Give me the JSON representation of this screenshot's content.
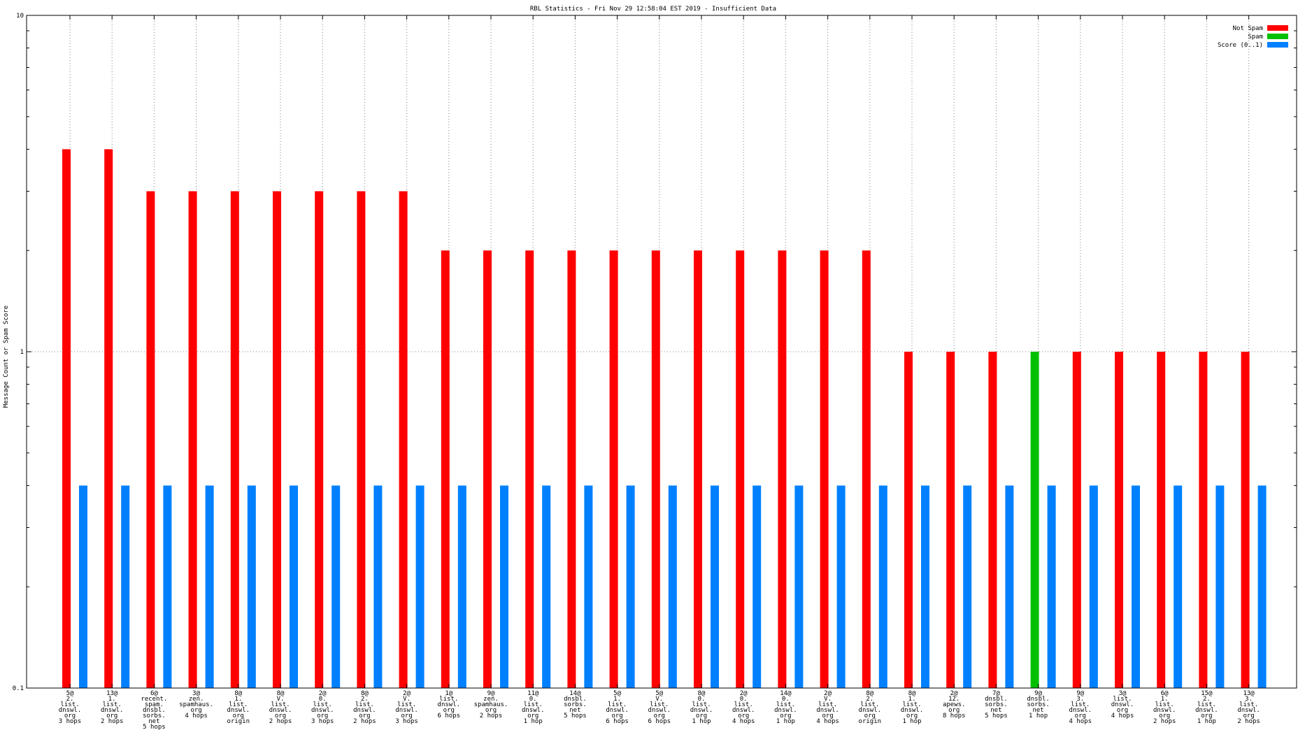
{
  "chart_data": {
    "type": "bar",
    "title": "RBL Statistics - Fri Nov 29 12:58:04 EST 2019 - Insufficient Data",
    "ylabel": "Message Count or Spam Score",
    "xlabel": "",
    "yscale": "log",
    "ylim": [
      0.1,
      10
    ],
    "yticks": [
      "0.1",
      "1",
      "10"
    ],
    "grid": true,
    "legend_position": "top-right",
    "series": [
      {
        "name": "Not Spam",
        "color": "#ff0000",
        "values": [
          4,
          4,
          3,
          3,
          3,
          3,
          3,
          3,
          3,
          2,
          2,
          2,
          2,
          2,
          2,
          2,
          2,
          2,
          2,
          2,
          1,
          1,
          1,
          0,
          1,
          1,
          1,
          1,
          1
        ]
      },
      {
        "name": "Spam",
        "color": "#00c000",
        "values": [
          0,
          0,
          0,
          0,
          0,
          0,
          0,
          0,
          0,
          0,
          0,
          0,
          0,
          0,
          0,
          0,
          0,
          0,
          0,
          0,
          0,
          0,
          0,
          1,
          0,
          0,
          0,
          0,
          0
        ]
      },
      {
        "name": "Score (0..1)",
        "color": "#0080ff",
        "values": [
          0.4,
          0.4,
          0.4,
          0.4,
          0.4,
          0.4,
          0.4,
          0.4,
          0.4,
          0.4,
          0.4,
          0.4,
          0.4,
          0.4,
          0.4,
          0.4,
          0.4,
          0.4,
          0.4,
          0.4,
          0.4,
          0.4,
          0.4,
          0.4,
          0.4,
          0.4,
          0.4,
          0.4,
          0.4
        ]
      }
    ],
    "categories": [
      [
        "5@",
        "2.",
        "list.",
        "dnswl.",
        "org",
        "3 hops"
      ],
      [
        "13@",
        "1.",
        "list.",
        "dnswl.",
        "org",
        "2 hops"
      ],
      [
        "6@",
        "recent.",
        "spam.",
        "dnsbl.",
        "sorbs.",
        "net",
        "5 hops"
      ],
      [
        "3@",
        "zen.",
        "spamhaus.",
        "org",
        "4 hops"
      ],
      [
        "8@",
        "1.",
        "list.",
        "dnswl.",
        "org",
        "origin"
      ],
      [
        "8@",
        "V.",
        "list.",
        "dnswl.",
        "org",
        "2 hops"
      ],
      [
        "2@",
        "0.",
        "list.",
        "dnswl.",
        "org",
        "3 hops"
      ],
      [
        "8@",
        "2.",
        "list.",
        "dnswl.",
        "org",
        "2 hops"
      ],
      [
        "2@",
        "V.",
        "list.",
        "dnswl.",
        "org",
        "3 hops"
      ],
      [
        "1@",
        "list.",
        "dnswl.",
        "org",
        "6 hops"
      ],
      [
        "9@",
        "zen.",
        "spamhaus.",
        "org",
        "2 hops"
      ],
      [
        "11@",
        "0.",
        "list.",
        "dnswl.",
        "org",
        "1 hop"
      ],
      [
        "14@",
        "dnsbl.",
        "sorbs.",
        "net",
        "5 hops"
      ],
      [
        "5@",
        "1.",
        "list.",
        "dnswl.",
        "org",
        "6 hops"
      ],
      [
        "5@",
        "V.",
        "list.",
        "dnswl.",
        "org",
        "6 hops"
      ],
      [
        "8@",
        "0.",
        "list.",
        "dnswl.",
        "org",
        "1 hop"
      ],
      [
        "2@",
        "0.",
        "list.",
        "dnswl.",
        "org",
        "4 hops"
      ],
      [
        "14@",
        "0.",
        "list.",
        "dnswl.",
        "org",
        "1 hop"
      ],
      [
        "2@",
        "V.",
        "list.",
        "dnswl.",
        "org",
        "4 hops"
      ],
      [
        "8@",
        "2.",
        "list.",
        "dnswl.",
        "org",
        "origin"
      ],
      [
        "8@",
        "1.",
        "list.",
        "dnswl.",
        "org",
        "1 hop"
      ],
      [
        "2@",
        "12.",
        "apews.",
        "org",
        "8 hops"
      ],
      [
        "7@",
        "dnsbl.",
        "sorbs.",
        "net",
        "5 hops"
      ],
      [
        "9@",
        "dnsbl.",
        "sorbs.",
        "net",
        "1 hop"
      ],
      [
        "9@",
        "3.",
        "list.",
        "dnswl.",
        "org",
        "4 hops"
      ],
      [
        "3@",
        "list.",
        "dnswl.",
        "org",
        "4 hops"
      ],
      [
        "6@",
        "1.",
        "list.",
        "dnswl.",
        "org",
        "2 hops"
      ],
      [
        "15@",
        "2.",
        "list.",
        "dnswl.",
        "org",
        "1 hop"
      ],
      [
        "13@",
        "3.",
        "list.",
        "dnswl.",
        "org",
        "2 hops"
      ]
    ]
  }
}
